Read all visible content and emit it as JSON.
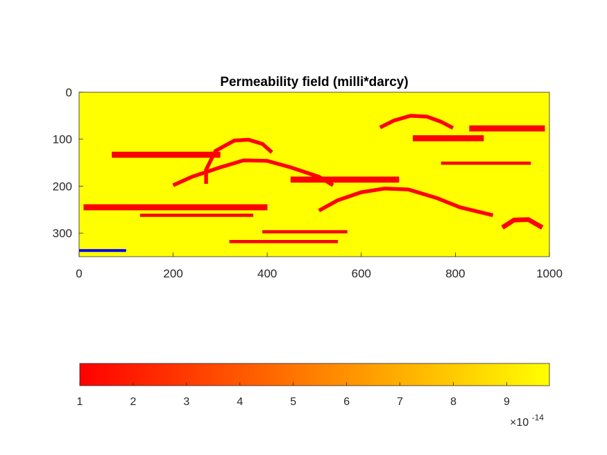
{
  "chart_data": {
    "type": "heatmap",
    "title": "Permeability field (milli*darcy)",
    "xlabel": "",
    "ylabel": "",
    "xlim": [
      0,
      1000
    ],
    "ylim": [
      0,
      350
    ],
    "y_reversed": true,
    "xticks": [
      0,
      200,
      400,
      600,
      800,
      1000
    ],
    "yticks": [
      0,
      100,
      200,
      300
    ],
    "background_value": 9.8e-14,
    "background_color": "#ffff00",
    "channel_color": "#ff0000",
    "channel_value": 1e-14,
    "well_color": "#0000ff",
    "channels": [
      {
        "kind": "band",
        "x": [
          70,
          300
        ],
        "y": 133,
        "thickness": 12
      },
      {
        "kind": "band",
        "x": [
          10,
          400
        ],
        "y": 245,
        "thickness": 12
      },
      {
        "kind": "band",
        "x": [
          130,
          370
        ],
        "y": 262,
        "thickness": 6
      },
      {
        "kind": "band",
        "x": [
          390,
          570
        ],
        "y": 297,
        "thickness": 6
      },
      {
        "kind": "band",
        "x": [
          320,
          550
        ],
        "y": 318,
        "thickness": 6
      },
      {
        "kind": "band",
        "x": [
          710,
          860
        ],
        "y": 98,
        "thickness": 12
      },
      {
        "kind": "band",
        "x": [
          830,
          990
        ],
        "y": 77,
        "thickness": 12
      },
      {
        "kind": "band",
        "x": [
          770,
          960
        ],
        "y": 151,
        "thickness": 6
      },
      {
        "kind": "band",
        "x": [
          450,
          680
        ],
        "y": 186,
        "thickness": 12
      },
      {
        "kind": "arc",
        "points": [
          [
            270,
            195
          ],
          [
            270,
            165
          ],
          [
            290,
            125
          ],
          [
            330,
            103
          ],
          [
            360,
            101
          ],
          [
            390,
            110
          ],
          [
            410,
            128
          ]
        ],
        "thickness": 8
      },
      {
        "kind": "arc",
        "points": [
          [
            200,
            198
          ],
          [
            240,
            180
          ],
          [
            300,
            160
          ],
          [
            350,
            145
          ],
          [
            400,
            146
          ],
          [
            450,
            160
          ],
          [
            510,
            180
          ],
          [
            540,
            198
          ]
        ],
        "thickness": 8
      },
      {
        "kind": "arc",
        "points": [
          [
            640,
            75
          ],
          [
            670,
            60
          ],
          [
            705,
            50
          ],
          [
            740,
            52
          ],
          [
            770,
            63
          ],
          [
            795,
            76
          ]
        ],
        "thickness": 8
      },
      {
        "kind": "arc",
        "points": [
          [
            510,
            252
          ],
          [
            550,
            230
          ],
          [
            600,
            213
          ],
          [
            650,
            205
          ],
          [
            700,
            207
          ],
          [
            760,
            225
          ],
          [
            810,
            245
          ],
          [
            880,
            262
          ]
        ],
        "thickness": 8
      },
      {
        "kind": "arc",
        "points": [
          [
            900,
            288
          ],
          [
            925,
            272
          ],
          [
            955,
            271
          ],
          [
            985,
            288
          ]
        ],
        "thickness": 10
      }
    ],
    "well": {
      "x": [
        0,
        100
      ],
      "y": 337,
      "thickness": 6
    },
    "colorbar": {
      "orientation": "horizontal",
      "location": "southoutside",
      "range": [
        1,
        9.8
      ],
      "ticks": [
        1,
        2,
        3,
        4,
        5,
        6,
        7,
        8,
        9
      ],
      "exponent_prefix": "×10",
      "exponent": "-14",
      "color_low": "#ff0000",
      "color_high": "#ffff00"
    }
  }
}
